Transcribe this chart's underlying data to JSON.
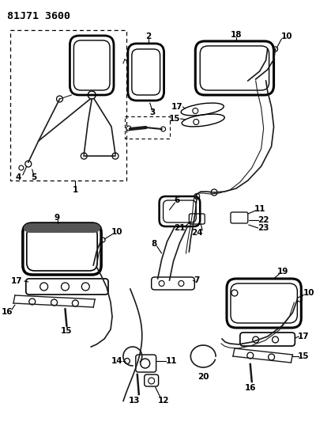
{
  "title": "81J71 3600",
  "bg_color": "#ffffff",
  "line_color": "#1a1a1a",
  "title_fontsize": 9.5,
  "label_fontsize": 7.5,
  "fig_width": 4.0,
  "fig_height": 5.33
}
